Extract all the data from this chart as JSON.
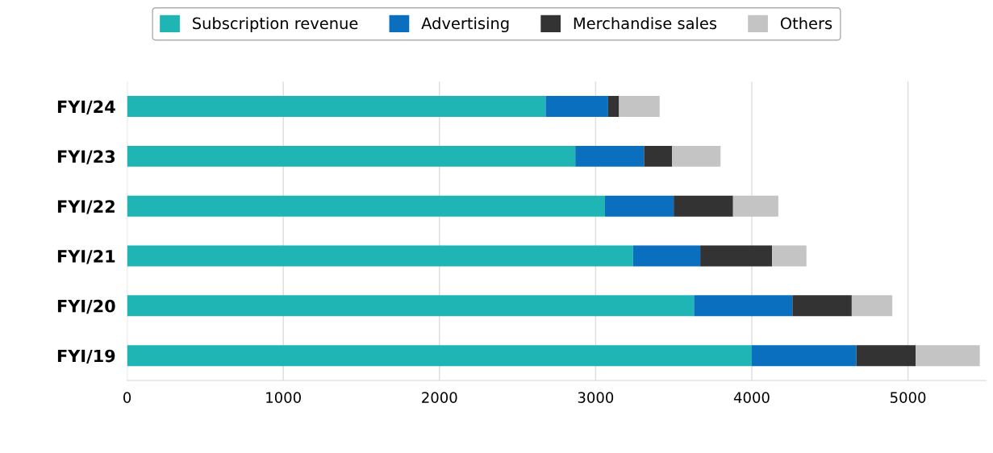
{
  "chart_data": {
    "type": "bar",
    "orientation": "horizontal",
    "stacked": true,
    "categories": [
      "FYI/24",
      "FYI/23",
      "FYI/22",
      "FYI/21",
      "FYI/20",
      "FYI/19"
    ],
    "series": [
      {
        "name": "Subscription revenue",
        "color": "#20b5b5",
        "values": [
          2680,
          2870,
          3060,
          3240,
          3630,
          4000
        ]
      },
      {
        "name": "Advertising",
        "color": "#0a6fbf",
        "values": [
          400,
          440,
          440,
          430,
          630,
          670
        ]
      },
      {
        "name": "Merchandise sales",
        "color": "#333333",
        "values": [
          70,
          180,
          380,
          460,
          380,
          380
        ]
      },
      {
        "name": "Others",
        "color": "#c4c4c4",
        "values": [
          260,
          310,
          290,
          220,
          260,
          410
        ]
      }
    ],
    "xlim": [
      0,
      5500
    ],
    "xticks": [
      0,
      1000,
      2000,
      3000,
      4000,
      5000
    ],
    "grid": "x",
    "legend": "top"
  }
}
